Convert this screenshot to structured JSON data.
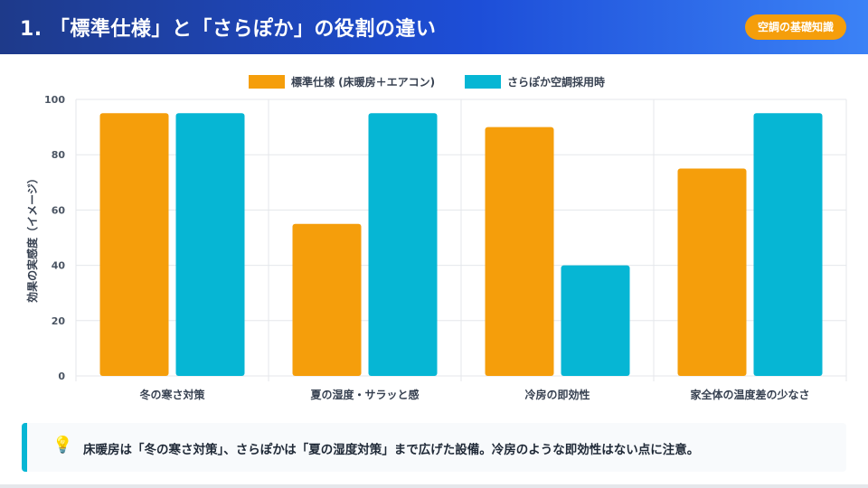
{
  "header": {
    "title": "1. 「標準仕様」と「さらぽか」の役割の違い",
    "badge": "空調の基礎知識"
  },
  "colors": {
    "standard": "#f59e0b",
    "sarapoka": "#06b6d4"
  },
  "chart_data": {
    "type": "bar",
    "categories": [
      "冬の寒さ対策",
      "夏の湿度・サラッと感",
      "冷房の即効性",
      "家全体の温度差の少なさ"
    ],
    "series": [
      {
        "name": "標準仕様 (床暖房＋エアコン)",
        "values": [
          95,
          55,
          90,
          75
        ]
      },
      {
        "name": "さらぽか空調採用時",
        "values": [
          95,
          95,
          40,
          95
        ]
      }
    ],
    "ylabel": "効果の実感度（イメージ）",
    "ylim": [
      0,
      100
    ],
    "yticks": [
      "0",
      "20",
      "40",
      "60",
      "80",
      "100"
    ],
    "legend": "top",
    "grid": true
  },
  "callout": {
    "icon": "lightbulb-icon",
    "text": "床暖房は「冬の寒さ対策」、さらぽかは「夏の湿度対策」まで広げた設備。冷房のような即効性はない点に注意。"
  }
}
